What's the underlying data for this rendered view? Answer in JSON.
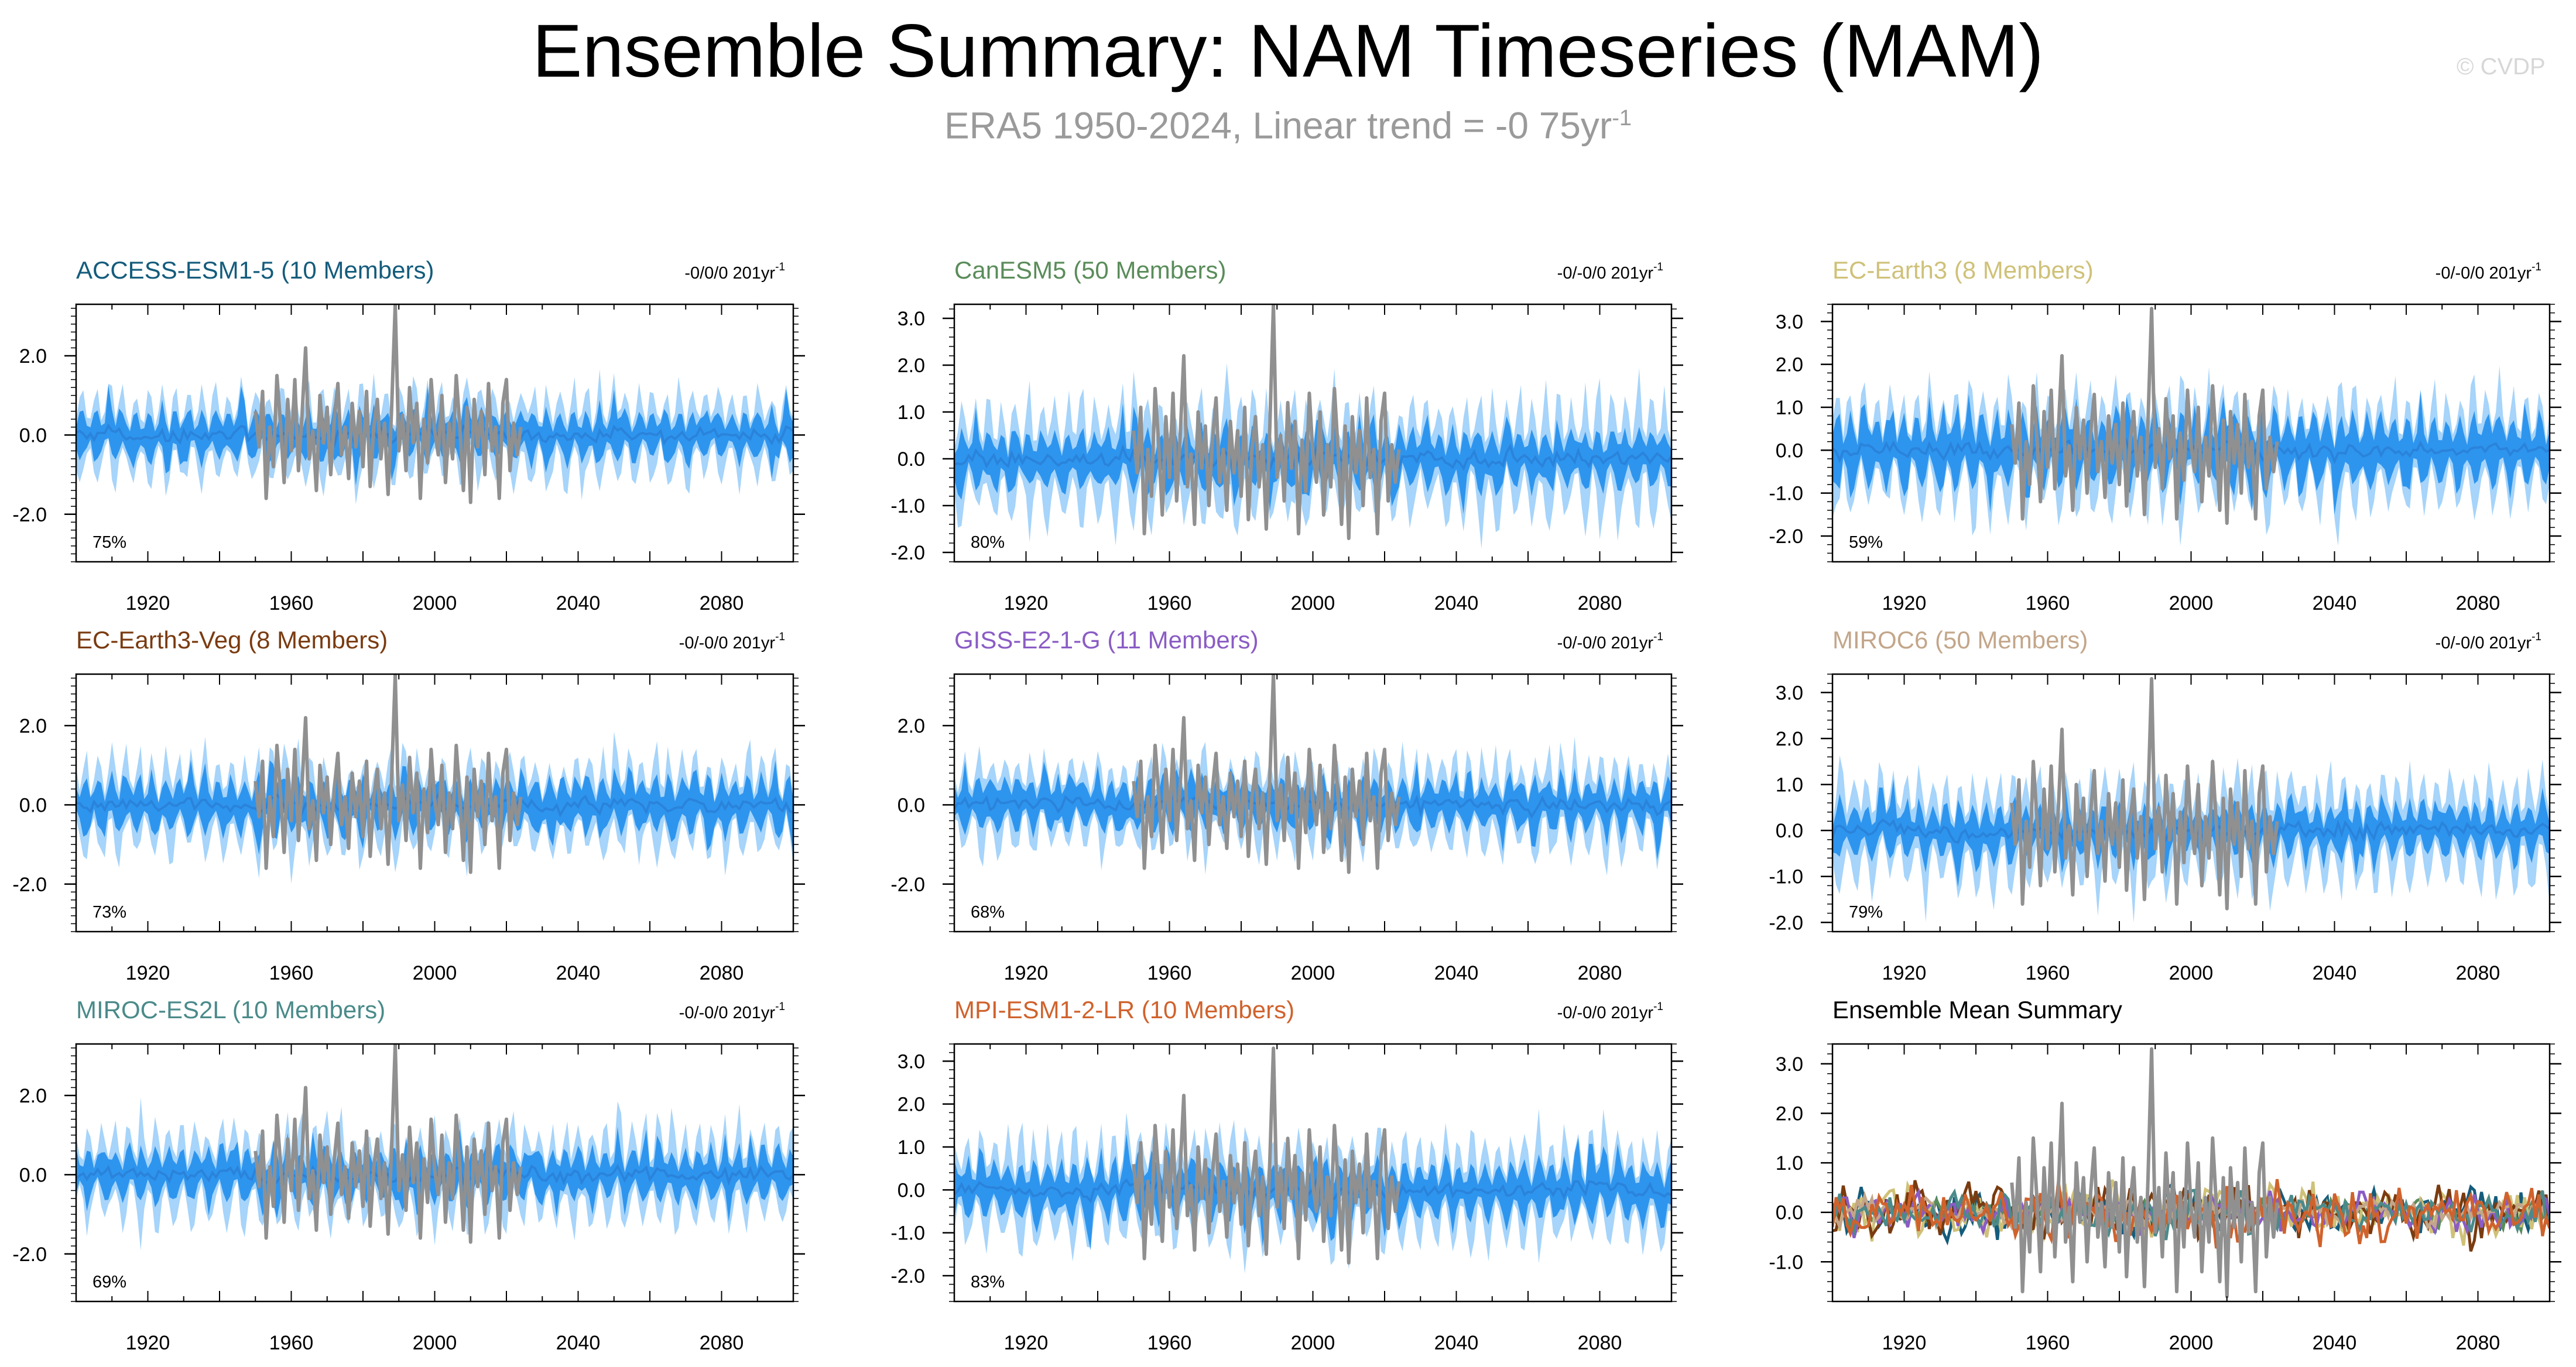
{
  "title": "Ensemble Summary: NAM Timeseries (MAM)",
  "subtitle": {
    "prefix": "ERA5 1950-2024, Linear trend = -0 75yr",
    "exp": "-1"
  },
  "watermark": "© CVDP",
  "colors": {
    "outer_band": "#a6d4fa",
    "inner_band": "#2e95ee",
    "ensemble_line": "#2a83db",
    "observation": "#909090",
    "text": "#000000"
  },
  "chart_data": [
    {
      "type": "area",
      "title": "ACCESS-ESM1-5 (10 Members)",
      "title_color": "#145c7c",
      "trend_text": "-0/0/0 201yr",
      "trend_exp": "-1",
      "percent_label": "75%",
      "x_range": [
        1900,
        2100
      ],
      "ylim": [
        -3.2,
        3.3
      ],
      "y_ticks": [
        -2.0,
        0.0,
        2.0
      ],
      "y_tick_labels": [
        "-2.0",
        "0.0",
        "2.0"
      ],
      "x_tick_labels": [
        "1920",
        "1960",
        "2000",
        "2040",
        "2080"
      ],
      "outer_amp": 1.35,
      "inner_amp": 0.75,
      "seed": 11
    },
    {
      "type": "area",
      "title": "CanESM5 (50 Members)",
      "title_color": "#5a8c5a",
      "trend_text": "-0/-0/0 201yr",
      "trend_exp": "-1",
      "percent_label": "80%",
      "x_range": [
        1900,
        2100
      ],
      "ylim": [
        -2.2,
        3.3
      ],
      "y_ticks": [
        -2.0,
        -1.0,
        0.0,
        1.0,
        2.0,
        3.0
      ],
      "y_tick_labels": [
        "-2.0",
        "-1.0",
        "0.0",
        "1.0",
        "2.0",
        "3.0"
      ],
      "x_tick_labels": [
        "1920",
        "1960",
        "2000",
        "2040",
        "2080"
      ],
      "outer_amp": 1.5,
      "inner_amp": 0.75,
      "seed": 23
    },
    {
      "type": "area",
      "title": "EC-Earth3 (8 Members)",
      "title_color": "#cfc178",
      "trend_text": "-0/-0/0 201yr",
      "trend_exp": "-1",
      "percent_label": "59%",
      "x_range": [
        1900,
        2100
      ],
      "ylim": [
        -2.6,
        3.4
      ],
      "y_ticks": [
        -2.0,
        -1.0,
        0.0,
        1.0,
        2.0,
        3.0
      ],
      "y_tick_labels": [
        "-2.0",
        "-1.0",
        "0.0",
        "1.0",
        "2.0",
        "3.0"
      ],
      "x_tick_labels": [
        "1920",
        "1960",
        "2000",
        "2040",
        "2080"
      ],
      "outer_amp": 1.6,
      "inner_amp": 1.0,
      "seed": 37
    },
    {
      "type": "area",
      "title": "EC-Earth3-Veg (8 Members)",
      "title_color": "#7a3b10",
      "trend_text": "-0/-0/0 201yr",
      "trend_exp": "-1",
      "percent_label": "73%",
      "x_range": [
        1900,
        2100
      ],
      "ylim": [
        -3.2,
        3.3
      ],
      "y_ticks": [
        -2.0,
        0.0,
        2.0
      ],
      "y_tick_labels": [
        "-2.0",
        "0.0",
        "2.0"
      ],
      "x_tick_labels": [
        "1920",
        "1960",
        "2000",
        "2040",
        "2080"
      ],
      "outer_amp": 1.45,
      "inner_amp": 0.85,
      "seed": 41
    },
    {
      "type": "area",
      "title": "GISS-E2-1-G (11 Members)",
      "title_color": "#8a5cc4",
      "trend_text": "-0/-0/0 201yr",
      "trend_exp": "-1",
      "percent_label": "68%",
      "x_range": [
        1900,
        2100
      ],
      "ylim": [
        -3.2,
        3.3
      ],
      "y_ticks": [
        -2.0,
        0.0,
        2.0
      ],
      "y_tick_labels": [
        "-2.0",
        "0.0",
        "2.0"
      ],
      "x_tick_labels": [
        "1920",
        "1960",
        "2000",
        "2040",
        "2080"
      ],
      "outer_amp": 1.4,
      "inner_amp": 0.8,
      "seed": 53
    },
    {
      "type": "area",
      "title": "MIROC6 (50 Members)",
      "title_color": "#c3a68a",
      "trend_text": "-0/-0/0 201yr",
      "trend_exp": "-1",
      "percent_label": "79%",
      "x_range": [
        1900,
        2100
      ],
      "ylim": [
        -2.2,
        3.4
      ],
      "y_ticks": [
        -2.0,
        -1.0,
        0.0,
        1.0,
        2.0,
        3.0
      ],
      "y_tick_labels": [
        "-2.0",
        "-1.0",
        "0.0",
        "1.0",
        "2.0",
        "3.0"
      ],
      "x_tick_labels": [
        "1920",
        "1960",
        "2000",
        "2040",
        "2080"
      ],
      "outer_amp": 1.45,
      "inner_amp": 0.7,
      "seed": 67
    },
    {
      "type": "area",
      "title": "MIROC-ES2L (10 Members)",
      "title_color": "#4b8a8a",
      "trend_text": "-0/-0/0 201yr",
      "trend_exp": "-1",
      "percent_label": "69%",
      "x_range": [
        1900,
        2100
      ],
      "ylim": [
        -3.2,
        3.3
      ],
      "y_ticks": [
        -2.0,
        0.0,
        2.0
      ],
      "y_tick_labels": [
        "-2.0",
        "0.0",
        "2.0"
      ],
      "x_tick_labels": [
        "1920",
        "1960",
        "2000",
        "2040",
        "2080"
      ],
      "outer_amp": 1.4,
      "inner_amp": 0.8,
      "seed": 71
    },
    {
      "type": "area",
      "title": "MPI-ESM1-2-LR (10 Members)",
      "title_color": "#d0622c",
      "trend_text": "-0/-0/0 201yr",
      "trend_exp": "-1",
      "percent_label": "83%",
      "x_range": [
        1900,
        2100
      ],
      "ylim": [
        -2.6,
        3.4
      ],
      "y_ticks": [
        -2.0,
        -1.0,
        0.0,
        1.0,
        2.0,
        3.0
      ],
      "y_tick_labels": [
        "-2.0",
        "-1.0",
        "0.0",
        "1.0",
        "2.0",
        "3.0"
      ],
      "x_tick_labels": [
        "1920",
        "1960",
        "2000",
        "2040",
        "2080"
      ],
      "outer_amp": 1.45,
      "inner_amp": 0.8,
      "seed": 83
    },
    {
      "type": "line",
      "title": "Ensemble Mean Summary",
      "title_color": "#000000",
      "x_range": [
        1900,
        2100
      ],
      "ylim": [
        -1.8,
        3.4
      ],
      "y_ticks": [
        -1.0,
        0.0,
        1.0,
        2.0,
        3.0
      ],
      "y_tick_labels": [
        "-1.0",
        "0.0",
        "1.0",
        "2.0",
        "3.0"
      ],
      "x_tick_labels": [
        "1920",
        "1960",
        "2000",
        "2040",
        "2080"
      ],
      "series": [
        {
          "name": "ACCESS-ESM1-5",
          "color": "#145c7c",
          "amp": 0.33,
          "seed": 101
        },
        {
          "name": "CanESM5",
          "color": "#5a8c5a",
          "amp": 0.2,
          "seed": 102
        },
        {
          "name": "EC-Earth3",
          "color": "#cfc178",
          "amp": 0.4,
          "seed": 103
        },
        {
          "name": "EC-Earth3-Veg",
          "color": "#7a3b10",
          "amp": 0.4,
          "seed": 104
        },
        {
          "name": "GISS-E2-1-G",
          "color": "#8a5cc4",
          "amp": 0.3,
          "seed": 105
        },
        {
          "name": "MIROC6",
          "color": "#c3a68a",
          "amp": 0.2,
          "seed": 106
        },
        {
          "name": "MIROC-ES2L",
          "color": "#4b8a8a",
          "amp": 0.3,
          "seed": 107
        },
        {
          "name": "MPI-ESM1-2-LR",
          "color": "#d0622c",
          "amp": 0.4,
          "seed": 108
        }
      ]
    }
  ],
  "observation": {
    "name": "ERA5",
    "years": [
      1950,
      1951,
      1952,
      1953,
      1954,
      1955,
      1956,
      1957,
      1958,
      1959,
      1960,
      1961,
      1962,
      1963,
      1964,
      1965,
      1966,
      1967,
      1968,
      1969,
      1970,
      1971,
      1972,
      1973,
      1974,
      1975,
      1976,
      1977,
      1978,
      1979,
      1980,
      1981,
      1982,
      1983,
      1984,
      1985,
      1986,
      1987,
      1988,
      1989,
      1990,
      1991,
      1992,
      1993,
      1994,
      1995,
      1996,
      1997,
      1998,
      1999,
      2000,
      2001,
      2002,
      2003,
      2004,
      2005,
      2006,
      2007,
      2008,
      2009,
      2010,
      2011,
      2012,
      2013,
      2014,
      2015,
      2016,
      2017,
      2018,
      2019,
      2020,
      2021,
      2022,
      2023,
      2024
    ],
    "values": [
      0.6,
      -0.3,
      1.1,
      -1.6,
      0.2,
      -0.8,
      1.5,
      0.3,
      -1.2,
      0.9,
      -0.4,
      1.4,
      -0.9,
      0.5,
      2.2,
      -0.6,
      0.1,
      -1.4,
      1.0,
      -0.2,
      0.7,
      -1.0,
      0.4,
      1.3,
      -0.5,
      0.2,
      -1.1,
      0.8,
      -0.3,
      0.6,
      -0.8,
      1.1,
      -1.3,
      0.2,
      0.9,
      -0.6,
      0.3,
      -1.5,
      0.7,
      3.3,
      -0.4,
      0.5,
      -0.9,
      1.2,
      -0.2,
      0.8,
      -1.6,
      0.4,
      -0.7,
      1.4,
      0.1,
      -0.5,
      1.0,
      -1.2,
      0.3,
      -0.6,
      1.5,
      0.2,
      -1.4,
      0.7,
      -1.7,
      0.9,
      -0.3,
      0.6,
      -1.0,
      1.3,
      -0.4,
      0.2,
      -1.6,
      0.8,
      1.4,
      -0.9,
      0.3,
      -0.5,
      0.2
    ]
  }
}
